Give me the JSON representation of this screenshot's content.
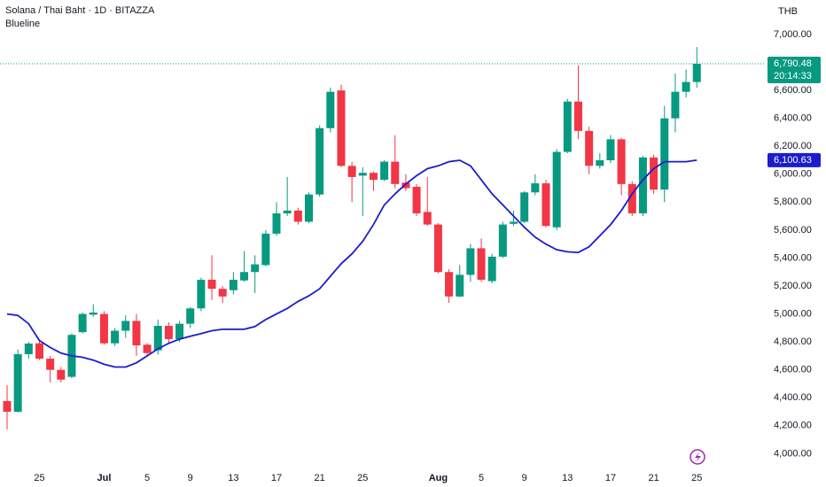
{
  "chart_data": {
    "type": "candlestick",
    "title": "Solana / Thai Baht · 1D · BITAZZA",
    "currency": "THB",
    "categories": [
      null,
      null,
      null,
      "25",
      null,
      null,
      null,
      null,
      null,
      "Jul",
      null,
      null,
      null,
      "5",
      null,
      null,
      null,
      "9",
      null,
      null,
      null,
      "13",
      null,
      null,
      null,
      "17",
      null,
      null,
      null,
      "21",
      null,
      null,
      null,
      "25",
      null,
      null,
      null,
      null,
      null,
      null,
      "Aug",
      null,
      null,
      null,
      "5",
      null,
      null,
      null,
      "9",
      null,
      null,
      null,
      "13",
      null,
      null,
      null,
      "17",
      null,
      null,
      null,
      "21",
      null,
      null,
      null,
      "25"
    ],
    "open": [
      4377,
      4300,
      4712,
      4790,
      4680,
      4600,
      4550,
      4870,
      4995,
      5000,
      4790,
      4880,
      4950,
      4780,
      4740,
      4915,
      4820,
      4930,
      5040,
      5245,
      5180,
      5170,
      5240,
      5300,
      5350,
      5575,
      5720,
      5740,
      5660,
      5855,
      6330,
      6600,
      6060,
      5990,
      6010,
      5960,
      6090,
      5940,
      5910,
      5730,
      5640,
      5300,
      5125,
      5280,
      5470,
      5235,
      5410,
      5645,
      5660,
      5870,
      5935,
      5620,
      6160,
      6520,
      6310,
      6060,
      6100,
      6250,
      5930,
      5720,
      6120,
      5890,
      6400,
      6590,
      6660
    ],
    "high": [
      4490,
      4745,
      4800,
      4810,
      4700,
      4620,
      4860,
      5010,
      5070,
      5020,
      4900,
      4990,
      5000,
      4790,
      4960,
      4940,
      4950,
      5050,
      5260,
      5420,
      5200,
      5300,
      5450,
      5420,
      5600,
      5800,
      5980,
      5760,
      5870,
      6350,
      6620,
      6640,
      6090,
      6050,
      6020,
      6100,
      6280,
      6000,
      5930,
      5980,
      5650,
      5320,
      5350,
      5500,
      5540,
      5430,
      5660,
      5740,
      5880,
      6000,
      5960,
      6180,
      6540,
      6780,
      6340,
      6150,
      6280,
      6260,
      5950,
      6130,
      6140,
      6490,
      6720,
      6750,
      6910
    ],
    "low": [
      4174,
      4295,
      4680,
      4670,
      4510,
      4510,
      4540,
      4860,
      4980,
      4780,
      4770,
      4830,
      4700,
      4700,
      4710,
      4790,
      4800,
      4900,
      5020,
      5100,
      5080,
      5140,
      5230,
      5150,
      5340,
      5560,
      5700,
      5640,
      5650,
      5840,
      6300,
      6050,
      5800,
      5700,
      5880,
      5950,
      5900,
      5880,
      5700,
      5630,
      5290,
      5080,
      5120,
      5230,
      5230,
      5220,
      5400,
      5630,
      5650,
      5850,
      5620,
      5600,
      6150,
      6250,
      6000,
      6040,
      6080,
      5850,
      5700,
      5700,
      5860,
      5800,
      6300,
      6550,
      6620
    ],
    "close": [
      4300,
      4712,
      4788,
      4680,
      4600,
      4530,
      4850,
      5000,
      5010,
      4790,
      4880,
      4950,
      4775,
      4720,
      4915,
      4820,
      4930,
      5040,
      5245,
      5180,
      5125,
      5245,
      5300,
      5355,
      5575,
      5720,
      5740,
      5660,
      5855,
      6330,
      6590,
      6060,
      5980,
      6010,
      5960,
      6090,
      5930,
      5900,
      5720,
      5640,
      5300,
      5125,
      5280,
      5470,
      5245,
      5410,
      5640,
      5660,
      5870,
      5935,
      5630,
      6160,
      6520,
      6310,
      6060,
      6100,
      6250,
      5930,
      5720,
      6120,
      5890,
      6400,
      6590,
      6660,
      6790.48
    ],
    "up_color": "#089981",
    "down_color": "#f23645",
    "last_close_label": "6,790.48",
    "countdown": "20:14:33",
    "series": [
      {
        "name": "Blueline",
        "color": "#1c1ccc",
        "last_label": "6,100.63",
        "values": [
          5000,
          4990,
          4930,
          4810,
          4760,
          4720,
          4700,
          4690,
          4670,
          4640,
          4620,
          4620,
          4650,
          4700,
          4750,
          4790,
          4820,
          4840,
          4860,
          4880,
          4890,
          4890,
          4890,
          4910,
          4960,
          5000,
          5040,
          5090,
          5130,
          5180,
          5270,
          5360,
          5430,
          5520,
          5640,
          5780,
          5860,
          5930,
          5990,
          6040,
          6060,
          6090,
          6100,
          6060,
          5960,
          5860,
          5780,
          5700,
          5620,
          5550,
          5500,
          5460,
          5445,
          5440,
          5480,
          5560,
          5640,
          5740,
          5860,
          5960,
          6040,
          6090,
          6090,
          6090,
          6100.63
        ]
      }
    ],
    "ylim": [
      3920,
      7247
    ],
    "yticks": [
      {
        "value": 4000,
        "label": "4,000.00"
      },
      {
        "value": 4200,
        "label": "4,200.00"
      },
      {
        "value": 4400,
        "label": "4,400.00"
      },
      {
        "value": 4600,
        "label": "4,600.00"
      },
      {
        "value": 4800,
        "label": "4,800.00"
      },
      {
        "value": 5000,
        "label": "5,000.00"
      },
      {
        "value": 5200,
        "label": "5,200.00"
      },
      {
        "value": 5400,
        "label": "5,400.00"
      },
      {
        "value": 5600,
        "label": "5,600.00"
      },
      {
        "value": 5800,
        "label": "5,800.00"
      },
      {
        "value": 6000,
        "label": "6,000.00"
      },
      {
        "value": 6200,
        "label": "6,200.00"
      },
      {
        "value": 6400,
        "label": "6,400.00"
      },
      {
        "value": 6600,
        "label": "6,600.00"
      },
      {
        "value": 7000,
        "label": "7,000.00"
      }
    ],
    "grid": false
  }
}
